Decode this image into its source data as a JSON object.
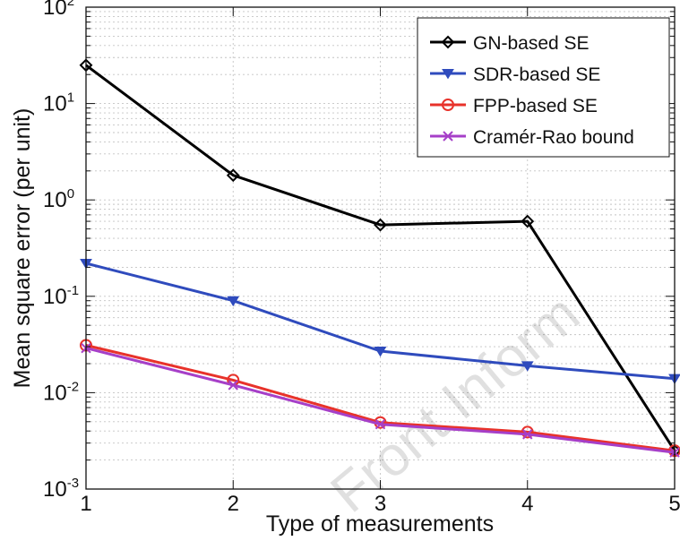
{
  "chart_data": {
    "type": "line",
    "xlabel": "Type of measurements",
    "ylabel": "Mean square error (per unit)",
    "x": [
      1,
      2,
      3,
      4,
      5
    ],
    "xticks": [
      "1",
      "2",
      "3",
      "4",
      "5"
    ],
    "xlim": [
      1,
      5
    ],
    "ylim": [
      0.001,
      100
    ],
    "yscale": "log",
    "ytick_base": "10",
    "ytick_exponents": [
      "-3",
      "-2",
      "-1",
      "0",
      "1",
      "2"
    ],
    "grid": true,
    "legend_position": "top-right",
    "series": [
      {
        "name": "GN-based SE",
        "color": "#000000",
        "marker": "diamond",
        "values": [
          25,
          1.8,
          0.55,
          0.6,
          0.0025
        ]
      },
      {
        "name": "SDR-based SE",
        "color": "#2f4bbd",
        "marker": "triangle-down",
        "values": [
          0.22,
          0.09,
          0.027,
          0.019,
          0.014
        ]
      },
      {
        "name": "FPP-based SE",
        "color": "#e8322a",
        "marker": "circle",
        "values": [
          0.031,
          0.0135,
          0.0049,
          0.0039,
          0.0025
        ]
      },
      {
        "name": "Cramér-Rao bound",
        "color": "#a63fc8",
        "marker": "x",
        "values": [
          0.029,
          0.012,
          0.0047,
          0.0037,
          0.0024
        ]
      }
    ],
    "watermark": "Front Inform"
  }
}
